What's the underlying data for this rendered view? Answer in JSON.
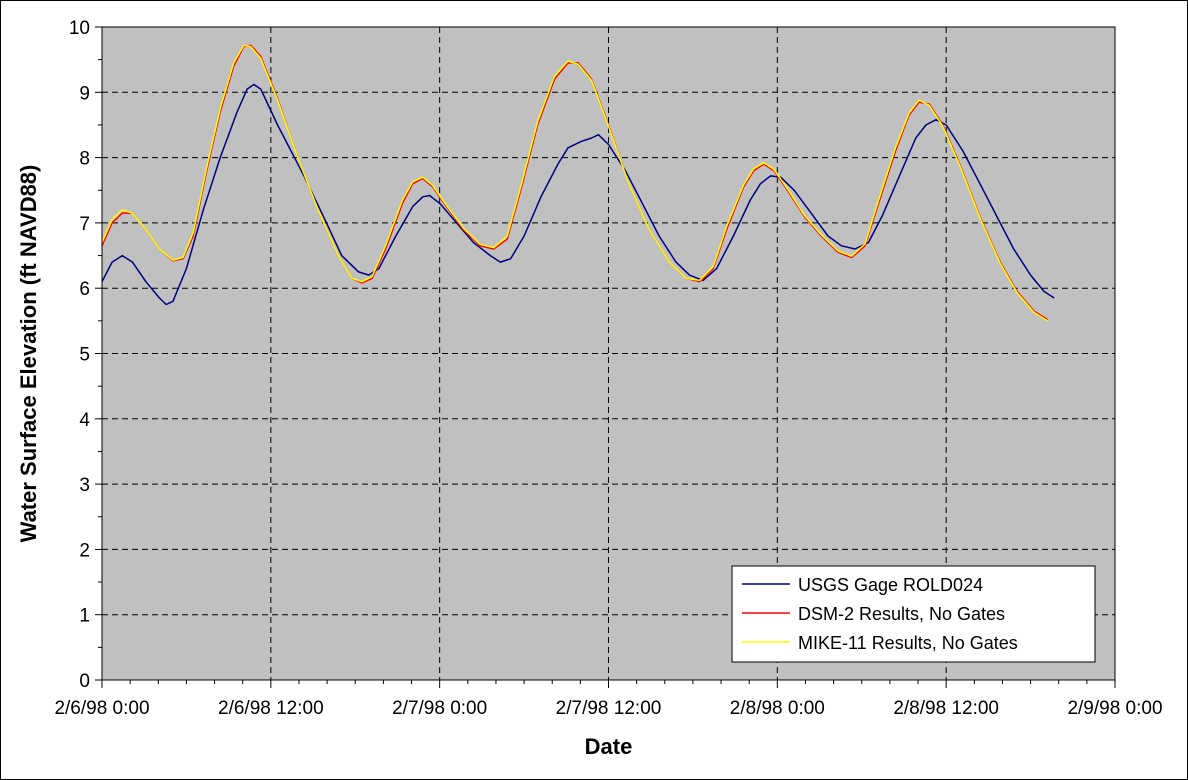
{
  "chart_data": {
    "type": "line",
    "title": "",
    "xlabel": "Date",
    "ylabel": "Water Surface Elevation (ft NAVD88)",
    "x_unit": "days",
    "xlim": [
      0,
      3
    ],
    "ylim": [
      0,
      10
    ],
    "y_ticks": [
      0,
      1,
      2,
      3,
      4,
      5,
      6,
      7,
      8,
      9,
      10
    ],
    "x_ticks": [
      {
        "x": 0,
        "label": "2/6/98 0:00"
      },
      {
        "x": 0.5,
        "label": "2/6/98 12:00"
      },
      {
        "x": 1,
        "label": "2/7/98 0:00"
      },
      {
        "x": 1.5,
        "label": "2/7/98 12:00"
      },
      {
        "x": 2,
        "label": "2/8/98 0:00"
      },
      {
        "x": 2.5,
        "label": "2/8/98 12:00"
      },
      {
        "x": 3,
        "label": "2/9/98 0:00"
      }
    ],
    "grid": true,
    "plot_background": "#c0c0c0",
    "legend_position": "bottom-right",
    "series": [
      {
        "name": "USGS Gage ROLD024",
        "color": "#000080",
        "points": [
          [
            0.0,
            6.1
          ],
          [
            0.03,
            6.4
          ],
          [
            0.06,
            6.5
          ],
          [
            0.09,
            6.4
          ],
          [
            0.13,
            6.1
          ],
          [
            0.17,
            5.85
          ],
          [
            0.19,
            5.75
          ],
          [
            0.21,
            5.8
          ],
          [
            0.25,
            6.3
          ],
          [
            0.3,
            7.2
          ],
          [
            0.35,
            8.0
          ],
          [
            0.4,
            8.7
          ],
          [
            0.43,
            9.05
          ],
          [
            0.45,
            9.12
          ],
          [
            0.47,
            9.05
          ],
          [
            0.52,
            8.5
          ],
          [
            0.6,
            7.7
          ],
          [
            0.66,
            7.05
          ],
          [
            0.71,
            6.5
          ],
          [
            0.76,
            6.25
          ],
          [
            0.79,
            6.2
          ],
          [
            0.82,
            6.3
          ],
          [
            0.87,
            6.8
          ],
          [
            0.92,
            7.25
          ],
          [
            0.95,
            7.4
          ],
          [
            0.97,
            7.42
          ],
          [
            1.0,
            7.3
          ],
          [
            1.05,
            7.0
          ],
          [
            1.1,
            6.7
          ],
          [
            1.15,
            6.5
          ],
          [
            1.18,
            6.4
          ],
          [
            1.21,
            6.45
          ],
          [
            1.25,
            6.8
          ],
          [
            1.3,
            7.4
          ],
          [
            1.35,
            7.9
          ],
          [
            1.38,
            8.15
          ],
          [
            1.42,
            8.25
          ],
          [
            1.45,
            8.3
          ],
          [
            1.47,
            8.35
          ],
          [
            1.5,
            8.2
          ],
          [
            1.55,
            7.8
          ],
          [
            1.6,
            7.3
          ],
          [
            1.65,
            6.8
          ],
          [
            1.7,
            6.4
          ],
          [
            1.74,
            6.2
          ],
          [
            1.78,
            6.12
          ],
          [
            1.82,
            6.3
          ],
          [
            1.87,
            6.8
          ],
          [
            1.92,
            7.35
          ],
          [
            1.95,
            7.6
          ],
          [
            1.98,
            7.72
          ],
          [
            2.01,
            7.7
          ],
          [
            2.05,
            7.5
          ],
          [
            2.1,
            7.15
          ],
          [
            2.15,
            6.8
          ],
          [
            2.19,
            6.65
          ],
          [
            2.23,
            6.6
          ],
          [
            2.27,
            6.7
          ],
          [
            2.31,
            7.1
          ],
          [
            2.36,
            7.7
          ],
          [
            2.41,
            8.3
          ],
          [
            2.44,
            8.5
          ],
          [
            2.47,
            8.58
          ],
          [
            2.5,
            8.5
          ],
          [
            2.55,
            8.1
          ],
          [
            2.6,
            7.6
          ],
          [
            2.65,
            7.1
          ],
          [
            2.7,
            6.6
          ],
          [
            2.75,
            6.2
          ],
          [
            2.79,
            5.95
          ],
          [
            2.82,
            5.85
          ]
        ]
      },
      {
        "name": "DSM-2 Results, No Gates",
        "color": "#ff0000",
        "points": [
          [
            0.0,
            6.65
          ],
          [
            0.03,
            7.0
          ],
          [
            0.06,
            7.15
          ],
          [
            0.09,
            7.15
          ],
          [
            0.13,
            6.9
          ],
          [
            0.17,
            6.6
          ],
          [
            0.21,
            6.42
          ],
          [
            0.24,
            6.45
          ],
          [
            0.27,
            6.8
          ],
          [
            0.31,
            7.8
          ],
          [
            0.35,
            8.7
          ],
          [
            0.39,
            9.4
          ],
          [
            0.42,
            9.7
          ],
          [
            0.44,
            9.72
          ],
          [
            0.47,
            9.55
          ],
          [
            0.52,
            8.9
          ],
          [
            0.58,
            8.0
          ],
          [
            0.64,
            7.2
          ],
          [
            0.7,
            6.5
          ],
          [
            0.74,
            6.15
          ],
          [
            0.77,
            6.08
          ],
          [
            0.8,
            6.15
          ],
          [
            0.84,
            6.6
          ],
          [
            0.89,
            7.3
          ],
          [
            0.92,
            7.6
          ],
          [
            0.95,
            7.68
          ],
          [
            0.98,
            7.55
          ],
          [
            1.02,
            7.25
          ],
          [
            1.07,
            6.9
          ],
          [
            1.12,
            6.65
          ],
          [
            1.16,
            6.6
          ],
          [
            1.2,
            6.75
          ],
          [
            1.24,
            7.5
          ],
          [
            1.29,
            8.5
          ],
          [
            1.34,
            9.2
          ],
          [
            1.38,
            9.45
          ],
          [
            1.41,
            9.45
          ],
          [
            1.45,
            9.2
          ],
          [
            1.5,
            8.5
          ],
          [
            1.56,
            7.6
          ],
          [
            1.62,
            6.9
          ],
          [
            1.68,
            6.4
          ],
          [
            1.73,
            6.15
          ],
          [
            1.77,
            6.1
          ],
          [
            1.81,
            6.3
          ],
          [
            1.85,
            6.9
          ],
          [
            1.9,
            7.55
          ],
          [
            1.93,
            7.8
          ],
          [
            1.96,
            7.9
          ],
          [
            1.99,
            7.8
          ],
          [
            2.03,
            7.5
          ],
          [
            2.08,
            7.1
          ],
          [
            2.13,
            6.8
          ],
          [
            2.18,
            6.55
          ],
          [
            2.22,
            6.47
          ],
          [
            2.26,
            6.65
          ],
          [
            2.3,
            7.3
          ],
          [
            2.35,
            8.1
          ],
          [
            2.39,
            8.65
          ],
          [
            2.42,
            8.85
          ],
          [
            2.45,
            8.82
          ],
          [
            2.49,
            8.5
          ],
          [
            2.54,
            7.9
          ],
          [
            2.6,
            7.1
          ],
          [
            2.66,
            6.4
          ],
          [
            2.71,
            5.95
          ],
          [
            2.76,
            5.65
          ],
          [
            2.8,
            5.52
          ]
        ]
      },
      {
        "name": "MIKE-11 Results, No Gates",
        "color": "#ffff00",
        "points": [
          [
            0.0,
            6.7
          ],
          [
            0.03,
            7.05
          ],
          [
            0.06,
            7.2
          ],
          [
            0.09,
            7.15
          ],
          [
            0.13,
            6.9
          ],
          [
            0.17,
            6.6
          ],
          [
            0.21,
            6.43
          ],
          [
            0.24,
            6.47
          ],
          [
            0.27,
            6.85
          ],
          [
            0.31,
            7.85
          ],
          [
            0.35,
            8.75
          ],
          [
            0.39,
            9.45
          ],
          [
            0.42,
            9.72
          ],
          [
            0.44,
            9.7
          ],
          [
            0.47,
            9.52
          ],
          [
            0.52,
            8.88
          ],
          [
            0.58,
            8.0
          ],
          [
            0.64,
            7.2
          ],
          [
            0.7,
            6.5
          ],
          [
            0.74,
            6.15
          ],
          [
            0.77,
            6.1
          ],
          [
            0.8,
            6.18
          ],
          [
            0.84,
            6.65
          ],
          [
            0.89,
            7.35
          ],
          [
            0.92,
            7.63
          ],
          [
            0.95,
            7.7
          ],
          [
            0.98,
            7.57
          ],
          [
            1.02,
            7.27
          ],
          [
            1.07,
            6.92
          ],
          [
            1.12,
            6.67
          ],
          [
            1.16,
            6.62
          ],
          [
            1.2,
            6.8
          ],
          [
            1.24,
            7.55
          ],
          [
            1.29,
            8.55
          ],
          [
            1.34,
            9.25
          ],
          [
            1.38,
            9.48
          ],
          [
            1.41,
            9.43
          ],
          [
            1.45,
            9.18
          ],
          [
            1.5,
            8.48
          ],
          [
            1.56,
            7.6
          ],
          [
            1.62,
            6.9
          ],
          [
            1.68,
            6.4
          ],
          [
            1.73,
            6.15
          ],
          [
            1.77,
            6.12
          ],
          [
            1.81,
            6.33
          ],
          [
            1.85,
            6.95
          ],
          [
            1.9,
            7.58
          ],
          [
            1.93,
            7.83
          ],
          [
            1.96,
            7.92
          ],
          [
            1.99,
            7.82
          ],
          [
            2.03,
            7.52
          ],
          [
            2.08,
            7.12
          ],
          [
            2.13,
            6.82
          ],
          [
            2.18,
            6.57
          ],
          [
            2.22,
            6.49
          ],
          [
            2.26,
            6.68
          ],
          [
            2.3,
            7.35
          ],
          [
            2.35,
            8.15
          ],
          [
            2.39,
            8.68
          ],
          [
            2.42,
            8.88
          ],
          [
            2.45,
            8.8
          ],
          [
            2.49,
            8.48
          ],
          [
            2.54,
            7.88
          ],
          [
            2.6,
            7.08
          ],
          [
            2.66,
            6.38
          ],
          [
            2.71,
            5.93
          ],
          [
            2.76,
            5.63
          ],
          [
            2.8,
            5.5
          ]
        ]
      }
    ]
  }
}
